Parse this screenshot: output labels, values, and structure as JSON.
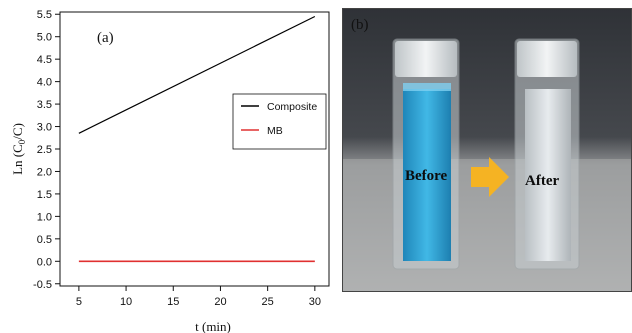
{
  "chart_data": {
    "type": "line",
    "panel_label": "(a)",
    "xlabel": "t (min)",
    "ylabel": "Ln (C",
    "ylabel_sub": "0",
    "ylabel_end": "/C)",
    "xlim": [
      3,
      31.5
    ],
    "ylim": [
      -0.55,
      5.55
    ],
    "x_ticks": [
      5,
      10,
      15,
      20,
      25,
      30
    ],
    "y_ticks": [
      -0.5,
      0.0,
      0.5,
      1.0,
      1.5,
      2.0,
      2.5,
      3.0,
      3.5,
      4.0,
      4.5,
      5.0,
      5.5
    ],
    "y_tick_labels": [
      "-0.5",
      "0.0",
      "0.5",
      "1.0",
      "1.5",
      "2.0",
      "2.5",
      "3.0",
      "3.5",
      "4.0",
      "4.5",
      "5.0",
      "5.5"
    ],
    "legend_position": "right",
    "series": [
      {
        "name": "Composite",
        "color": "#000000",
        "x": [
          5,
          30
        ],
        "y": [
          2.85,
          5.45
        ]
      },
      {
        "name": "MB",
        "color": "#e03030",
        "x": [
          5,
          30
        ],
        "y": [
          0.0,
          0.0
        ]
      }
    ]
  },
  "photo": {
    "panel_label": "(b)",
    "before_label": "Before",
    "after_label": "After",
    "arrow_color": "#f5b323",
    "solution_color": "#2ea3d6"
  }
}
